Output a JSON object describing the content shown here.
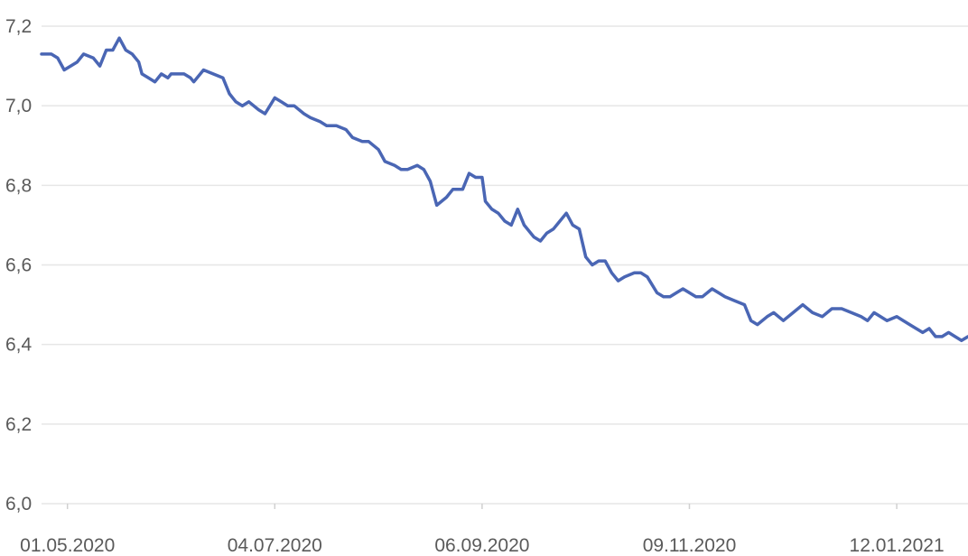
{
  "chart_data": {
    "type": "line",
    "title": "",
    "xlabel": "",
    "ylabel": "",
    "grid": true,
    "legend": "none",
    "color": "#4a66b4",
    "ylim": [
      6.0,
      7.2
    ],
    "y_ticks": [
      "6,0",
      "6,2",
      "6,4",
      "6,6",
      "6,8",
      "7,0",
      "7,2"
    ],
    "y_tick_values": [
      6.0,
      6.2,
      6.4,
      6.6,
      6.8,
      7.0,
      7.2
    ],
    "x_ticks": [
      "01.05.2020",
      "04.07.2020",
      "06.09.2020",
      "09.11.2020",
      "12.01.2021"
    ],
    "x_tick_dates": [
      "2020-05-01",
      "2020-07-04",
      "2020-09-06",
      "2020-11-09",
      "2021-01-12"
    ],
    "xlim": [
      "2020-04-23",
      "2021-02-03"
    ],
    "series": [
      {
        "x": [
          "2020-04-23",
          "2020-04-26",
          "2020-04-28",
          "2020-04-30",
          "2020-05-02",
          "2020-05-04",
          "2020-05-06",
          "2020-05-09",
          "2020-05-11",
          "2020-05-13",
          "2020-05-15",
          "2020-05-17",
          "2020-05-19",
          "2020-05-21",
          "2020-05-23",
          "2020-05-24",
          "2020-05-26",
          "2020-05-28",
          "2020-05-30",
          "2020-06-01",
          "2020-06-02",
          "2020-06-04",
          "2020-06-06",
          "2020-06-08",
          "2020-06-09",
          "2020-06-12",
          "2020-06-15",
          "2020-06-18",
          "2020-06-20",
          "2020-06-22",
          "2020-06-24",
          "2020-06-26",
          "2020-06-29",
          "2020-07-01",
          "2020-07-04",
          "2020-07-06",
          "2020-07-08",
          "2020-07-10",
          "2020-07-13",
          "2020-07-15",
          "2020-07-18",
          "2020-07-20",
          "2020-07-23",
          "2020-07-26",
          "2020-07-28",
          "2020-07-31",
          "2020-08-02",
          "2020-08-05",
          "2020-08-07",
          "2020-08-10",
          "2020-08-12",
          "2020-08-14",
          "2020-08-17",
          "2020-08-19",
          "2020-08-21",
          "2020-08-23",
          "2020-08-26",
          "2020-08-28",
          "2020-08-31",
          "2020-09-02",
          "2020-09-04",
          "2020-09-06",
          "2020-09-07",
          "2020-09-09",
          "2020-09-11",
          "2020-09-13",
          "2020-09-15",
          "2020-09-17",
          "2020-09-19",
          "2020-09-22",
          "2020-09-24",
          "2020-09-26",
          "2020-09-28",
          "2020-09-30",
          "2020-10-02",
          "2020-10-04",
          "2020-10-06",
          "2020-10-08",
          "2020-10-10",
          "2020-10-12",
          "2020-10-14",
          "2020-10-16",
          "2020-10-18",
          "2020-10-20",
          "2020-10-23",
          "2020-10-25",
          "2020-10-27",
          "2020-10-30",
          "2020-11-01",
          "2020-11-03",
          "2020-11-05",
          "2020-11-07",
          "2020-11-09",
          "2020-11-11",
          "2020-11-13",
          "2020-11-16",
          "2020-11-18",
          "2020-11-20",
          "2020-11-23",
          "2020-11-26",
          "2020-11-28",
          "2020-11-30",
          "2020-12-03",
          "2020-12-05",
          "2020-12-08",
          "2020-12-11",
          "2020-12-14",
          "2020-12-17",
          "2020-12-20",
          "2020-12-23",
          "2020-12-26",
          "2020-12-29",
          "2021-01-01",
          "2021-01-03",
          "2021-01-05",
          "2021-01-07",
          "2021-01-09",
          "2021-01-12",
          "2021-01-14",
          "2021-01-16",
          "2021-01-18",
          "2021-01-20",
          "2021-01-22",
          "2021-01-24",
          "2021-01-26",
          "2021-01-28",
          "2021-01-30",
          "2021-02-01",
          "2021-02-03"
        ],
        "values": [
          7.13,
          7.13,
          7.12,
          7.09,
          7.1,
          7.11,
          7.13,
          7.12,
          7.1,
          7.14,
          7.14,
          7.17,
          7.14,
          7.13,
          7.11,
          7.08,
          7.07,
          7.06,
          7.08,
          7.07,
          7.08,
          7.08,
          7.08,
          7.07,
          7.06,
          7.09,
          7.08,
          7.07,
          7.03,
          7.01,
          7.0,
          7.01,
          6.99,
          6.98,
          7.02,
          7.01,
          7.0,
          7.0,
          6.98,
          6.97,
          6.96,
          6.95,
          6.95,
          6.94,
          6.92,
          6.91,
          6.91,
          6.89,
          6.86,
          6.85,
          6.84,
          6.84,
          6.85,
          6.84,
          6.81,
          6.75,
          6.77,
          6.79,
          6.79,
          6.83,
          6.82,
          6.82,
          6.76,
          6.74,
          6.73,
          6.71,
          6.7,
          6.74,
          6.7,
          6.67,
          6.66,
          6.68,
          6.69,
          6.71,
          6.73,
          6.7,
          6.69,
          6.62,
          6.6,
          6.61,
          6.61,
          6.58,
          6.56,
          6.57,
          6.58,
          6.58,
          6.57,
          6.53,
          6.52,
          6.52,
          6.53,
          6.54,
          6.53,
          6.52,
          6.52,
          6.54,
          6.53,
          6.52,
          6.51,
          6.5,
          6.46,
          6.45,
          6.47,
          6.48,
          6.46,
          6.48,
          6.5,
          6.48,
          6.47,
          6.49,
          6.49,
          6.48,
          6.47,
          6.46,
          6.48,
          6.47,
          6.46,
          6.47,
          6.46,
          6.45,
          6.44,
          6.43,
          6.44,
          6.42,
          6.42,
          6.43,
          6.42,
          6.41,
          6.42
        ]
      }
    ]
  }
}
